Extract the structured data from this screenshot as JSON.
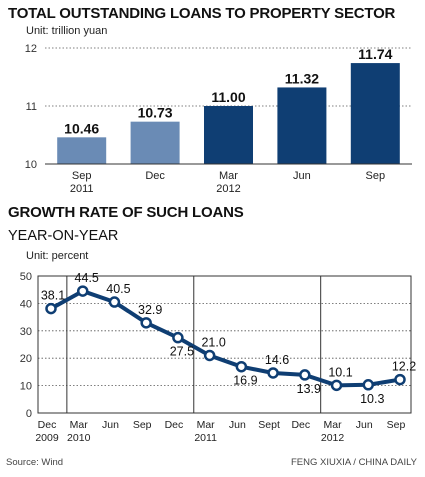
{
  "header": {
    "title_1": "TOTAL OUTSTANDING LOANS TO PROPERTY SECTOR",
    "unit_1": "Unit: trillion yuan",
    "title_2": "GROWTH RATE OF SUCH LOANS",
    "subtitle_2": "YEAR-ON-YEAR",
    "unit_2": "Unit: percent"
  },
  "footer": {
    "source": "Source: Wind",
    "credit": "FENG XIUXIA / CHINA DAILY"
  },
  "colors": {
    "light_bar": "#6a8bb5",
    "dark_bar": "#0f3e73",
    "line": "#0f3e73"
  },
  "chart_data": [
    {
      "type": "bar",
      "title": "TOTAL OUTSTANDING LOANS TO PROPERTY SECTOR",
      "ylabel": "Unit: trillion yuan",
      "ylim": [
        10,
        12
      ],
      "yticks": [
        10,
        11,
        12
      ],
      "grid": true,
      "categories": [
        "Sep 2011",
        "Dec",
        "Mar 2012",
        "Jun",
        "Sep"
      ],
      "category_labels": [
        [
          "Sep",
          "2011"
        ],
        [
          "Dec"
        ],
        [
          "Mar",
          "2012"
        ],
        [
          "Jun"
        ],
        [
          "Sep"
        ]
      ],
      "values": [
        10.46,
        10.73,
        11.0,
        11.32,
        11.74
      ],
      "value_labels": [
        "10.46",
        "10.73",
        "11.00",
        "11.32",
        "11.74"
      ],
      "bar_colors": [
        "light",
        "light",
        "dark",
        "dark",
        "dark"
      ]
    },
    {
      "type": "line",
      "title": "GROWTH RATE OF SUCH LOANS",
      "subtitle": "YEAR-ON-YEAR",
      "ylabel": "Unit: percent",
      "ylim": [
        0,
        50
      ],
      "yticks": [
        0,
        10,
        20,
        30,
        40,
        50
      ],
      "grid": true,
      "categories": [
        "Dec 2009",
        "Mar 2010",
        "Jun",
        "Sep",
        "Dec",
        "Mar 2011",
        "Jun",
        "Sept",
        "Dec",
        "Mar 2012",
        "Jun",
        "Sep"
      ],
      "category_labels": [
        [
          "Dec",
          "2009"
        ],
        [
          "Mar",
          "2010"
        ],
        [
          "Jun"
        ],
        [
          "Sep"
        ],
        [
          "Dec"
        ],
        [
          "Mar",
          "2011"
        ],
        [
          "Jun"
        ],
        [
          "Sept"
        ],
        [
          "Dec"
        ],
        [
          "Mar",
          "2012"
        ],
        [
          "Jun"
        ],
        [
          "Sep"
        ]
      ],
      "values": [
        38.1,
        44.5,
        40.5,
        32.9,
        27.5,
        21.0,
        16.9,
        14.6,
        13.9,
        10.1,
        10.3,
        12.2
      ],
      "value_labels": [
        "38.1",
        "44.5",
        "40.5",
        "32.9",
        "27.5",
        "21.0",
        "16.9",
        "14.6",
        "13.9",
        "10.1",
        "10.3",
        "12.2"
      ],
      "year_dividers_after": [
        "Mar 2010",
        "Mar 2011",
        "Mar 2012"
      ]
    }
  ]
}
